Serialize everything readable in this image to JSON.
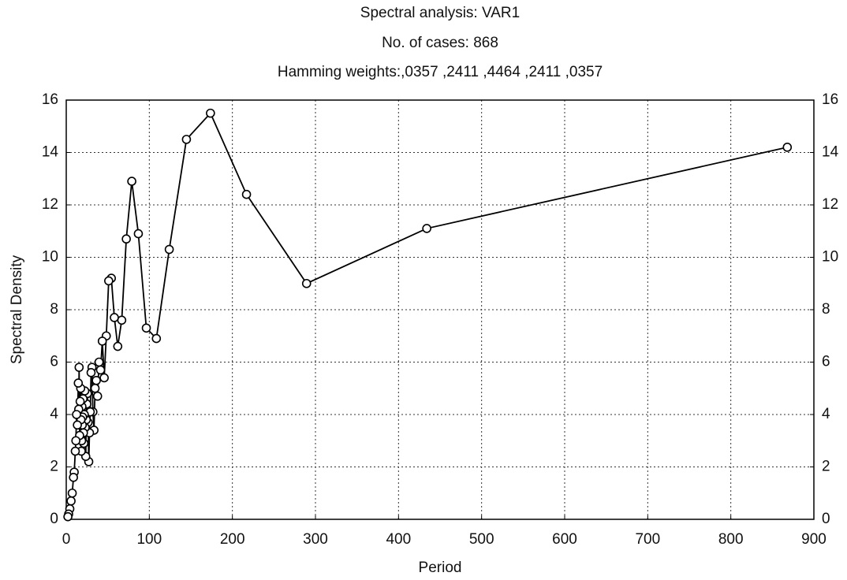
{
  "chart_data": {
    "type": "line",
    "title": "Spectral analysis: VAR1",
    "subtitle": "No. of cases: 868",
    "annotation": "Hamming weights:,0357 ,2411 ,4464 ,2411 ,0357",
    "xlabel": "Period",
    "ylabel": "Spectral Density",
    "x": [
      868,
      434,
      289.3,
      217,
      173.6,
      144.7,
      124,
      108.5,
      96.4,
      86.8,
      78.9,
      72.3,
      66.8,
      62,
      57.9,
      54.3,
      51.1,
      48.2,
      45.7,
      43.4,
      41.3,
      39.5,
      37.7,
      36.2,
      34.7,
      33.4,
      32.1,
      31,
      29.9,
      28.9,
      28,
      27.1,
      26.3,
      25.5,
      24.8,
      24.1,
      23.5,
      22.8,
      22.3,
      21.7,
      21.2,
      20.7,
      20.2,
      19.7,
      19.3,
      18.9,
      18.5,
      18.1,
      17.7,
      17.4,
      16.7,
      16.1,
      15.5,
      15,
      14.5,
      13.4,
      12.4,
      11.6,
      10.9,
      9.6,
      8.7,
      7.2,
      5.8,
      4.3,
      2.9,
      2
    ],
    "series": [
      {
        "name": "VAR1",
        "color": "#000000",
        "values": [
          14.2,
          11.1,
          9.0,
          12.4,
          15.5,
          14.5,
          10.3,
          6.9,
          7.3,
          10.9,
          12.9,
          10.7,
          7.6,
          6.6,
          7.7,
          9.2,
          9.1,
          7.0,
          5.4,
          6.8,
          5.7,
          6.0,
          4.7,
          5.3,
          5.0,
          3.4,
          4.1,
          5.8,
          5.6,
          4.1,
          3.3,
          2.2,
          3.7,
          4.8,
          4.4,
          3.8,
          2.4,
          3.5,
          4.9,
          4.0,
          2.9,
          3.3,
          4.6,
          3.9,
          3.6,
          4.3,
          3.0,
          2.6,
          3.8,
          5.0,
          4.5,
          3.2,
          5.8,
          4.2,
          5.2,
          3.6,
          4.0,
          3.0,
          2.6,
          1.8,
          1.6,
          1.0,
          0.7,
          0.4,
          0.2,
          0.1
        ]
      }
    ],
    "xlim": [
      0,
      900
    ],
    "xticks": [
      0,
      100,
      200,
      300,
      400,
      500,
      600,
      700,
      800,
      900
    ],
    "ylim": [
      0,
      16
    ],
    "yticks": [
      0,
      2,
      4,
      6,
      8,
      10,
      12,
      14,
      16
    ],
    "y2lim": [
      0,
      16
    ],
    "y2ticks": [
      0,
      2,
      4,
      6,
      8,
      10,
      12,
      14,
      16
    ],
    "grid": true
  }
}
